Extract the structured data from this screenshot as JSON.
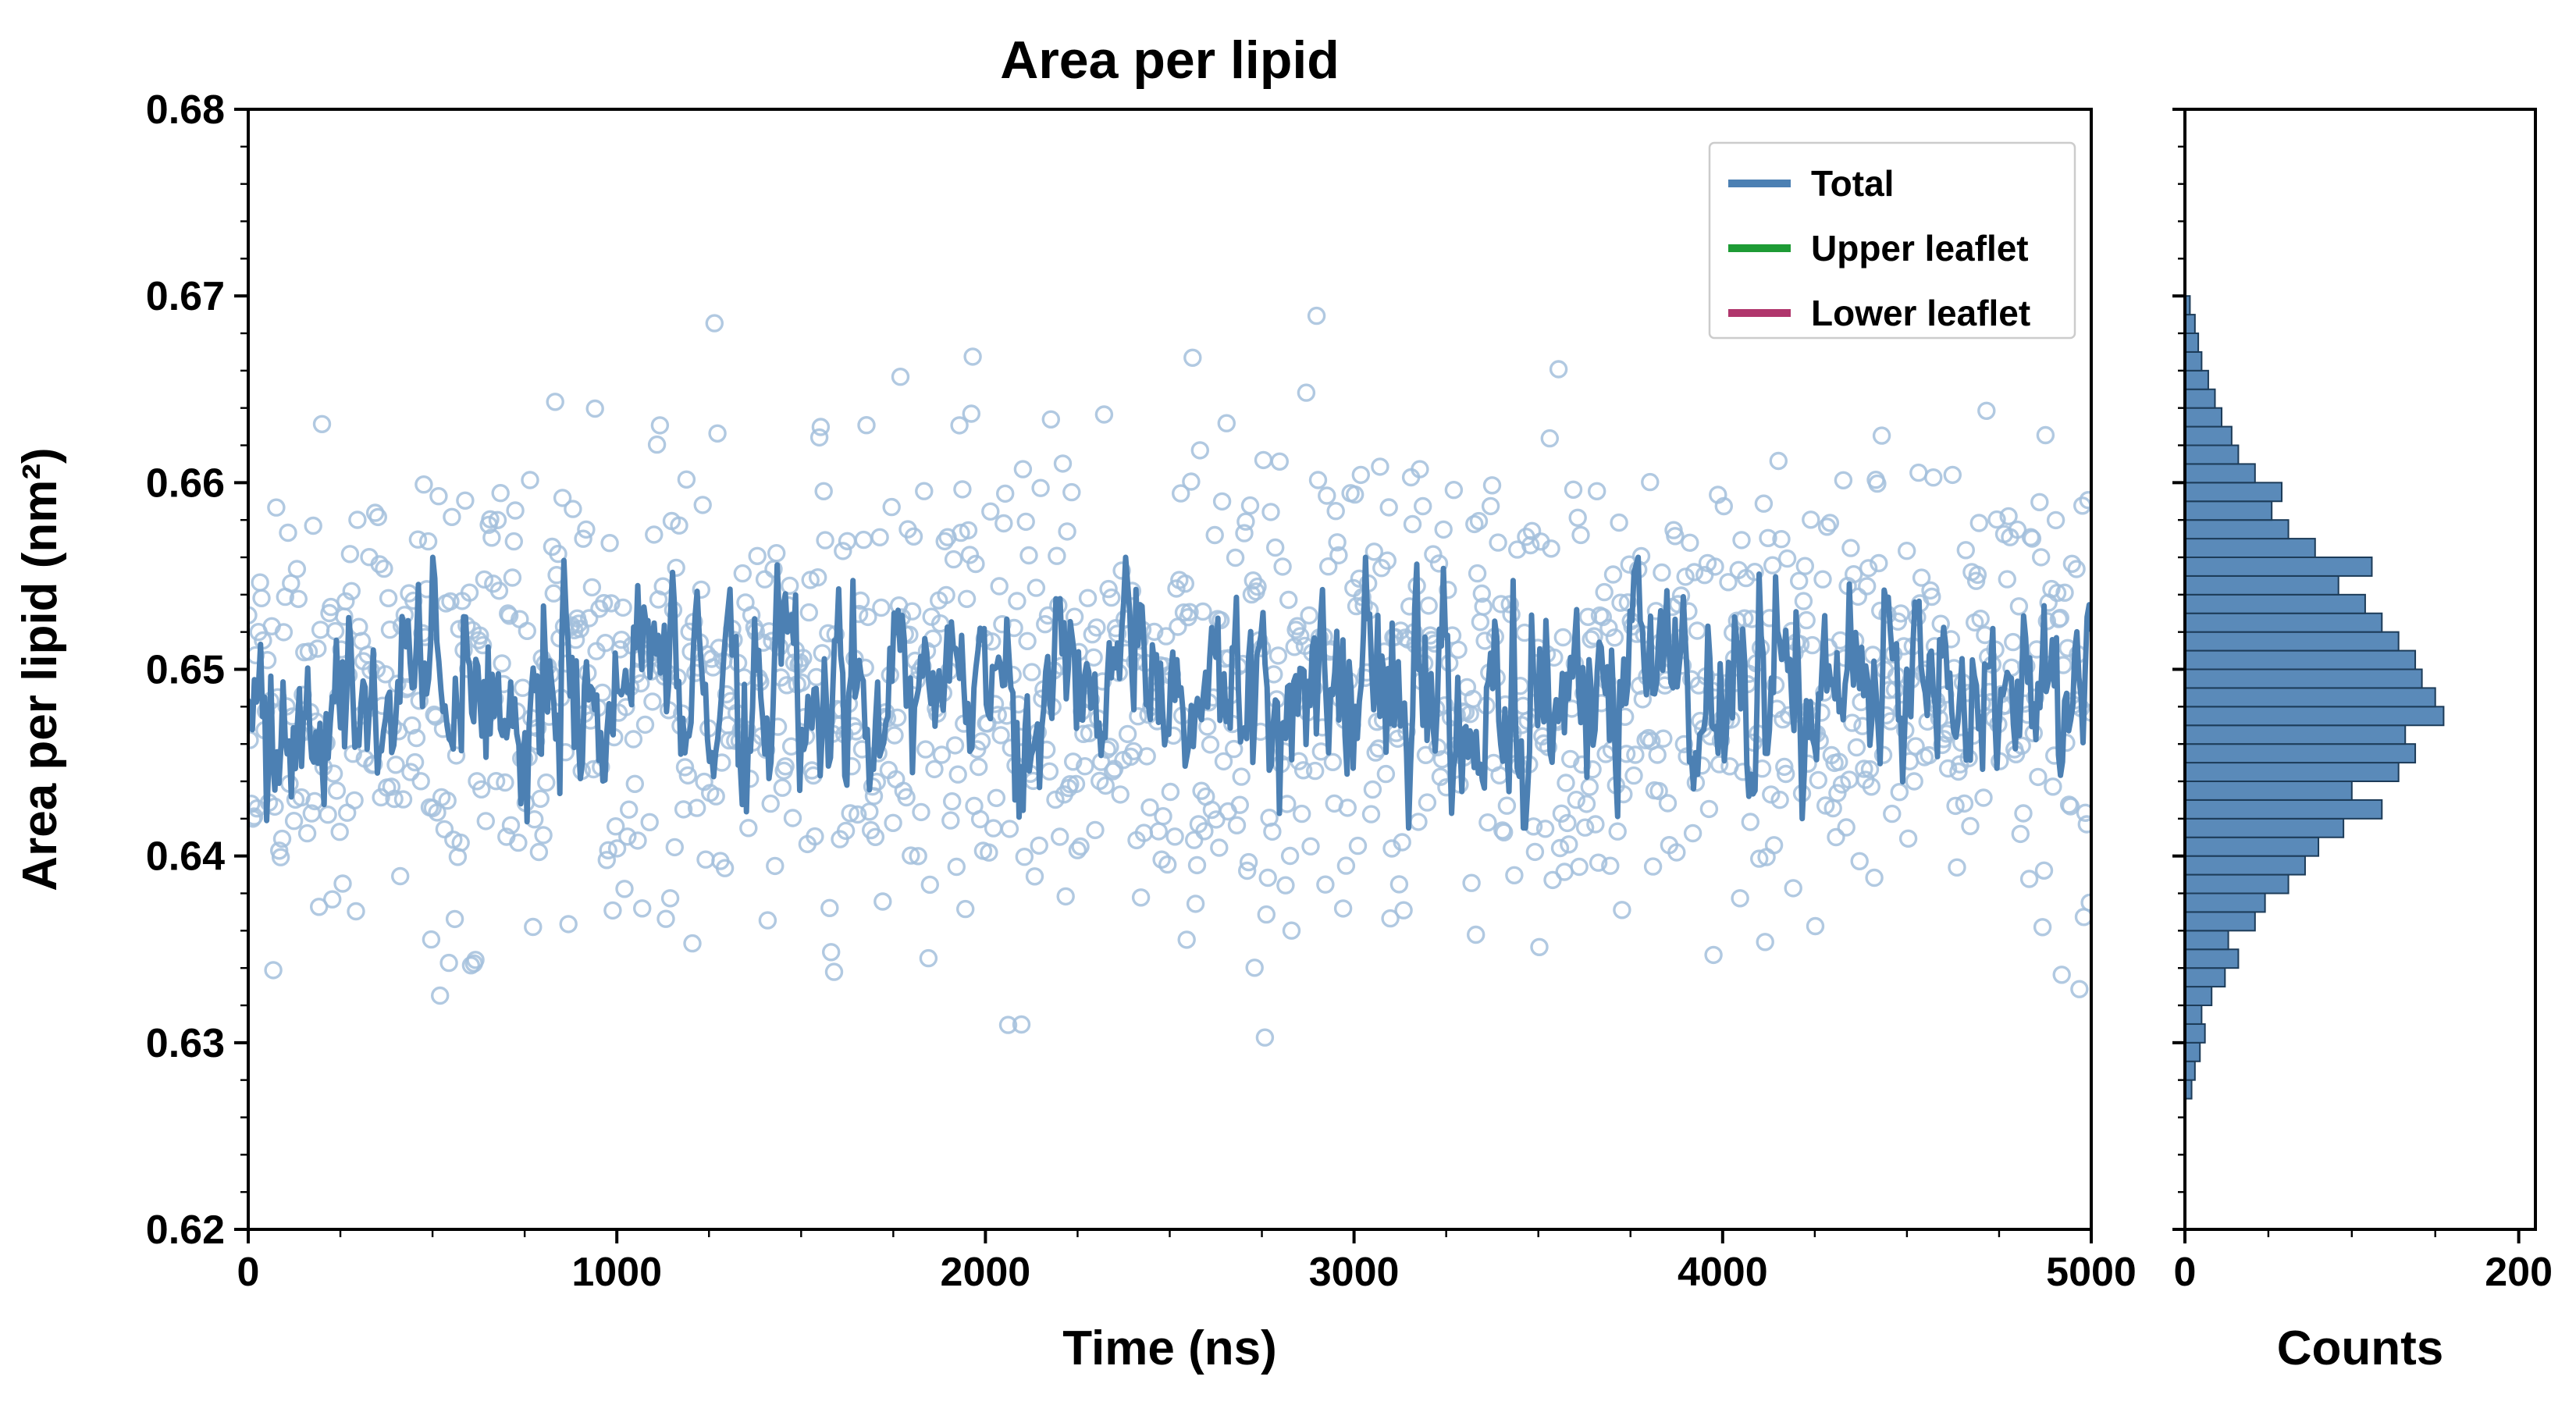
{
  "figure": {
    "background": "#ffffff"
  },
  "chart_data": {
    "type": "scatter",
    "description": "Molecular dynamics area-per-lipid time series (scatter of raw samples + running-average line) with a horizontal histogram of value counts in a side panel.",
    "panels": [
      {
        "id": "timeseries",
        "title": "Area per lipid",
        "xlabel": "Time (ns)",
        "ylabel": "Area per lipid (nm²)",
        "xlim": [
          0,
          5000
        ],
        "ylim": [
          0.62,
          0.68
        ],
        "xticks": [
          0,
          1000,
          2000,
          3000,
          4000,
          5000
        ],
        "xticklabels": [
          "0",
          "1000",
          "2000",
          "3000",
          "4000",
          "5000"
        ],
        "yticks": [
          0.62,
          0.63,
          0.64,
          0.65,
          0.66,
          0.67,
          0.68
        ],
        "yticklabels": [
          "0.62",
          "0.63",
          "0.64",
          "0.65",
          "0.66",
          "0.67",
          "0.68"
        ],
        "yminor_step": 0.002,
        "xminor_step": 250,
        "grid": false,
        "series": [
          {
            "name": "Total raw samples",
            "type": "scatter",
            "marker": "open-circle",
            "color": "#a3c0dc",
            "marker_radius": 10,
            "n": 1250,
            "x_start": 0,
            "x_end": 5000,
            "mean": 0.6487,
            "sd": 0.0062,
            "clip": [
              0.6278,
              0.6692
            ],
            "seed": 1337
          },
          {
            "name": "Total running average",
            "type": "line",
            "color": "#4c80b3",
            "line_width": 7,
            "n": 900,
            "x_start": 0,
            "x_end": 5000,
            "mean": 0.6487,
            "sd": 0.0028,
            "ar": 0.55,
            "clip": [
              0.6415,
              0.656
            ],
            "seed": 2024
          }
        ],
        "legend": {
          "position": "upper right",
          "entries": [
            {
              "label": "Total",
              "color": "#4c80b3"
            },
            {
              "label": "Upper leaflet",
              "color": "#1e9b35"
            },
            {
              "label": "Lower leaflet",
              "color": "#b0366c"
            }
          ]
        }
      },
      {
        "id": "histogram",
        "xlabel": "Counts",
        "xlim": [
          0,
          210
        ],
        "xticks": [
          0,
          200
        ],
        "xticklabels": [
          "0",
          "200"
        ],
        "xminor_ticks": [
          50,
          100,
          150
        ],
        "ylim": [
          0.62,
          0.68
        ],
        "yminor_step": 0.002,
        "orientation": "horizontal",
        "bin_width": 0.001,
        "bins_y_start": 0.627,
        "counts": [
          4,
          6,
          9,
          12,
          10,
          16,
          24,
          32,
          26,
          42,
          48,
          62,
          72,
          80,
          95,
          118,
          100,
          128,
          138,
          132,
          155,
          150,
          142,
          138,
          128,
          118,
          108,
          92,
          112,
          78,
          62,
          52,
          58,
          42,
          32,
          28,
          22,
          18,
          14,
          10,
          8,
          6,
          3
        ],
        "bar_color": "#4c80b3",
        "bar_edge_color": "#1d3c59"
      }
    ],
    "style": {
      "spine_color": "#000000",
      "spine_width": 4,
      "tick_color": "#000000",
      "legend_border_color": "#cccccc",
      "legend_background": "#ffffff"
    }
  }
}
